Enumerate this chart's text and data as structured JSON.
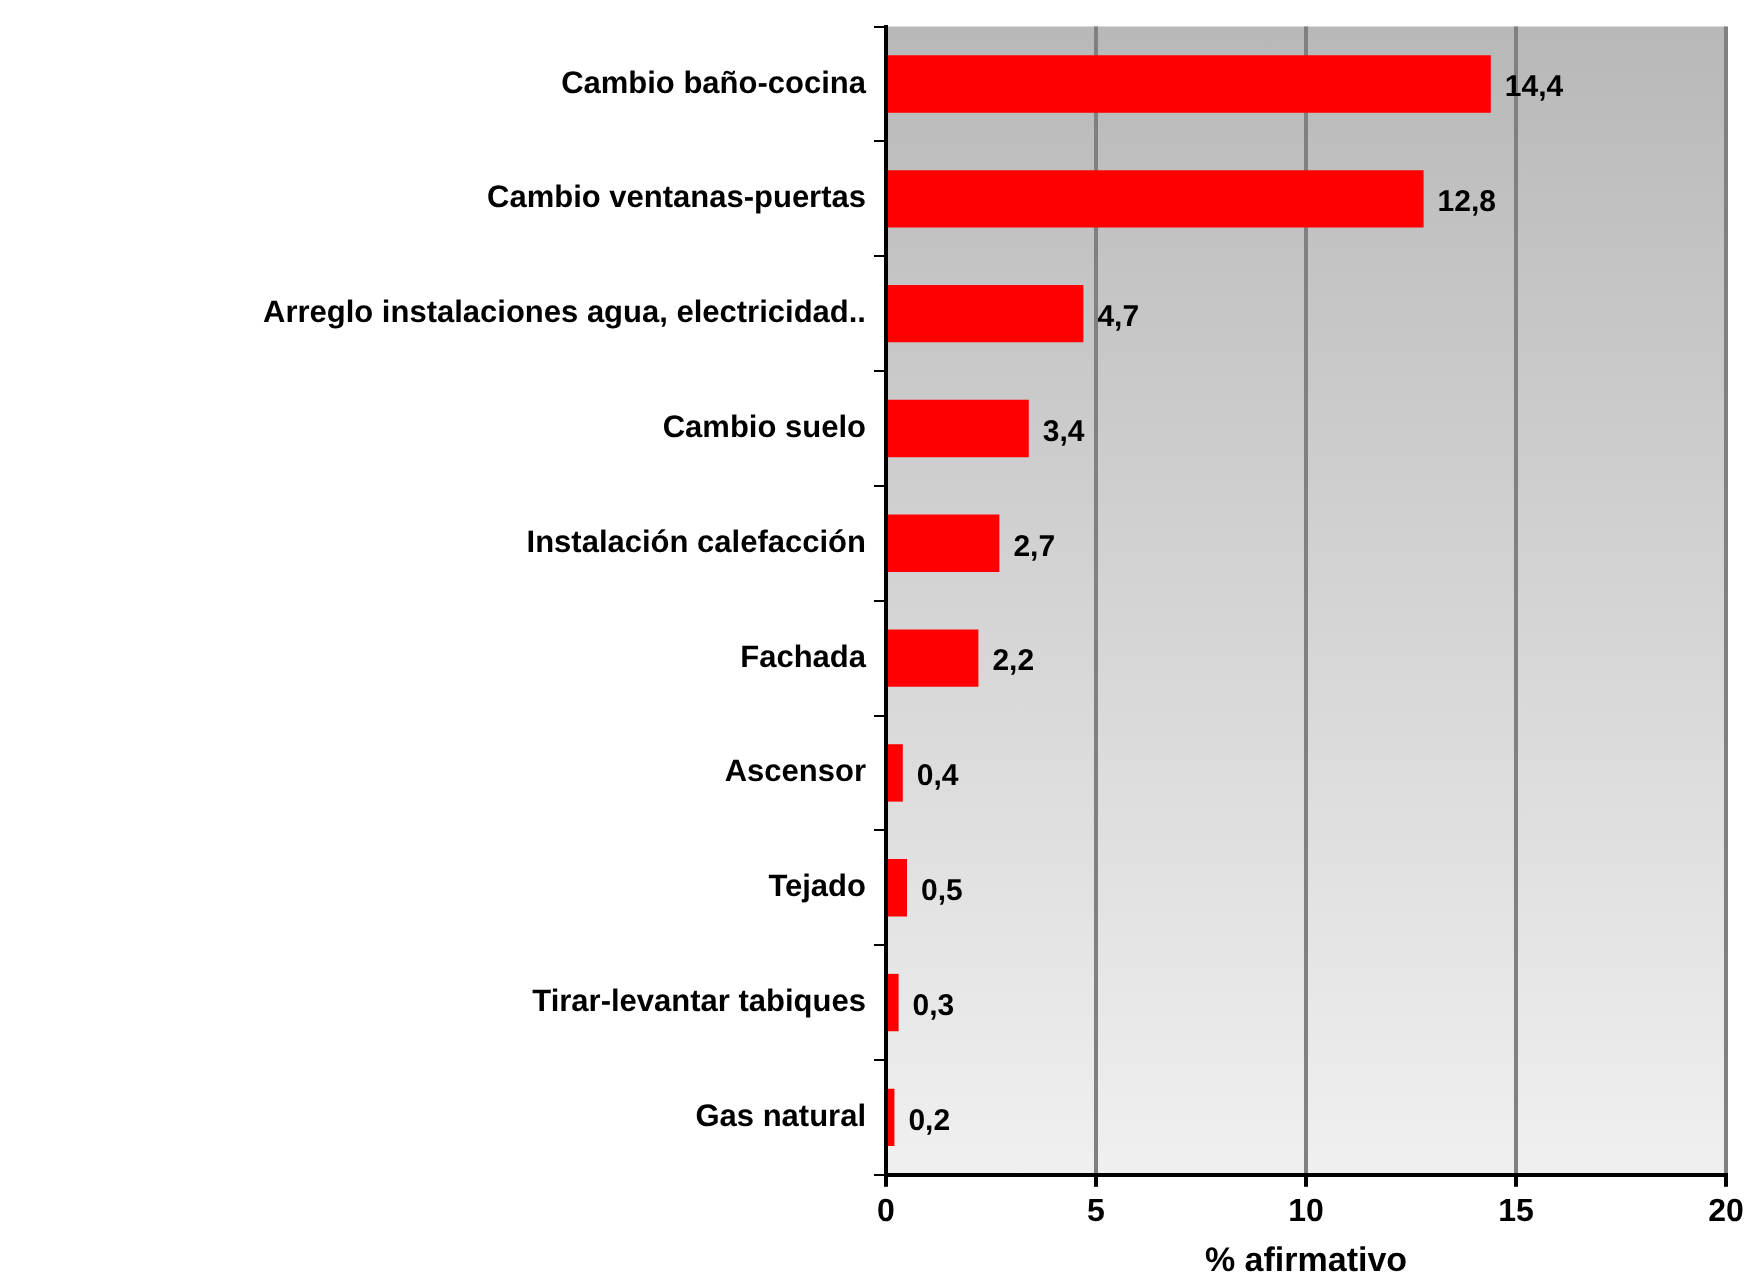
{
  "chart_data": {
    "type": "bar",
    "orientation": "horizontal",
    "xlabel": "% afirmativo",
    "categories": [
      "Cambio baño-cocina",
      "Cambio ventanas-puertas",
      "Arreglo instalaciones agua, electricidad..",
      "Cambio suelo",
      "Instalación calefacción",
      "Fachada",
      "Ascensor",
      "Tejado",
      "Tirar-levantar tabiques",
      "Gas natural"
    ],
    "values": [
      14.4,
      12.8,
      4.7,
      3.4,
      2.7,
      2.2,
      0.4,
      0.5,
      0.3,
      0.2
    ],
    "value_labels": [
      "14,4",
      "12,8",
      "4,7",
      "3,4",
      "2,7",
      "2,2",
      "0,4",
      "0,5",
      "0,3",
      "0,2"
    ],
    "color": "#ff0000",
    "xlim": [
      0,
      20
    ],
    "xticks": [
      0,
      5,
      10,
      15,
      20
    ],
    "grid": "x",
    "legend": false
  }
}
